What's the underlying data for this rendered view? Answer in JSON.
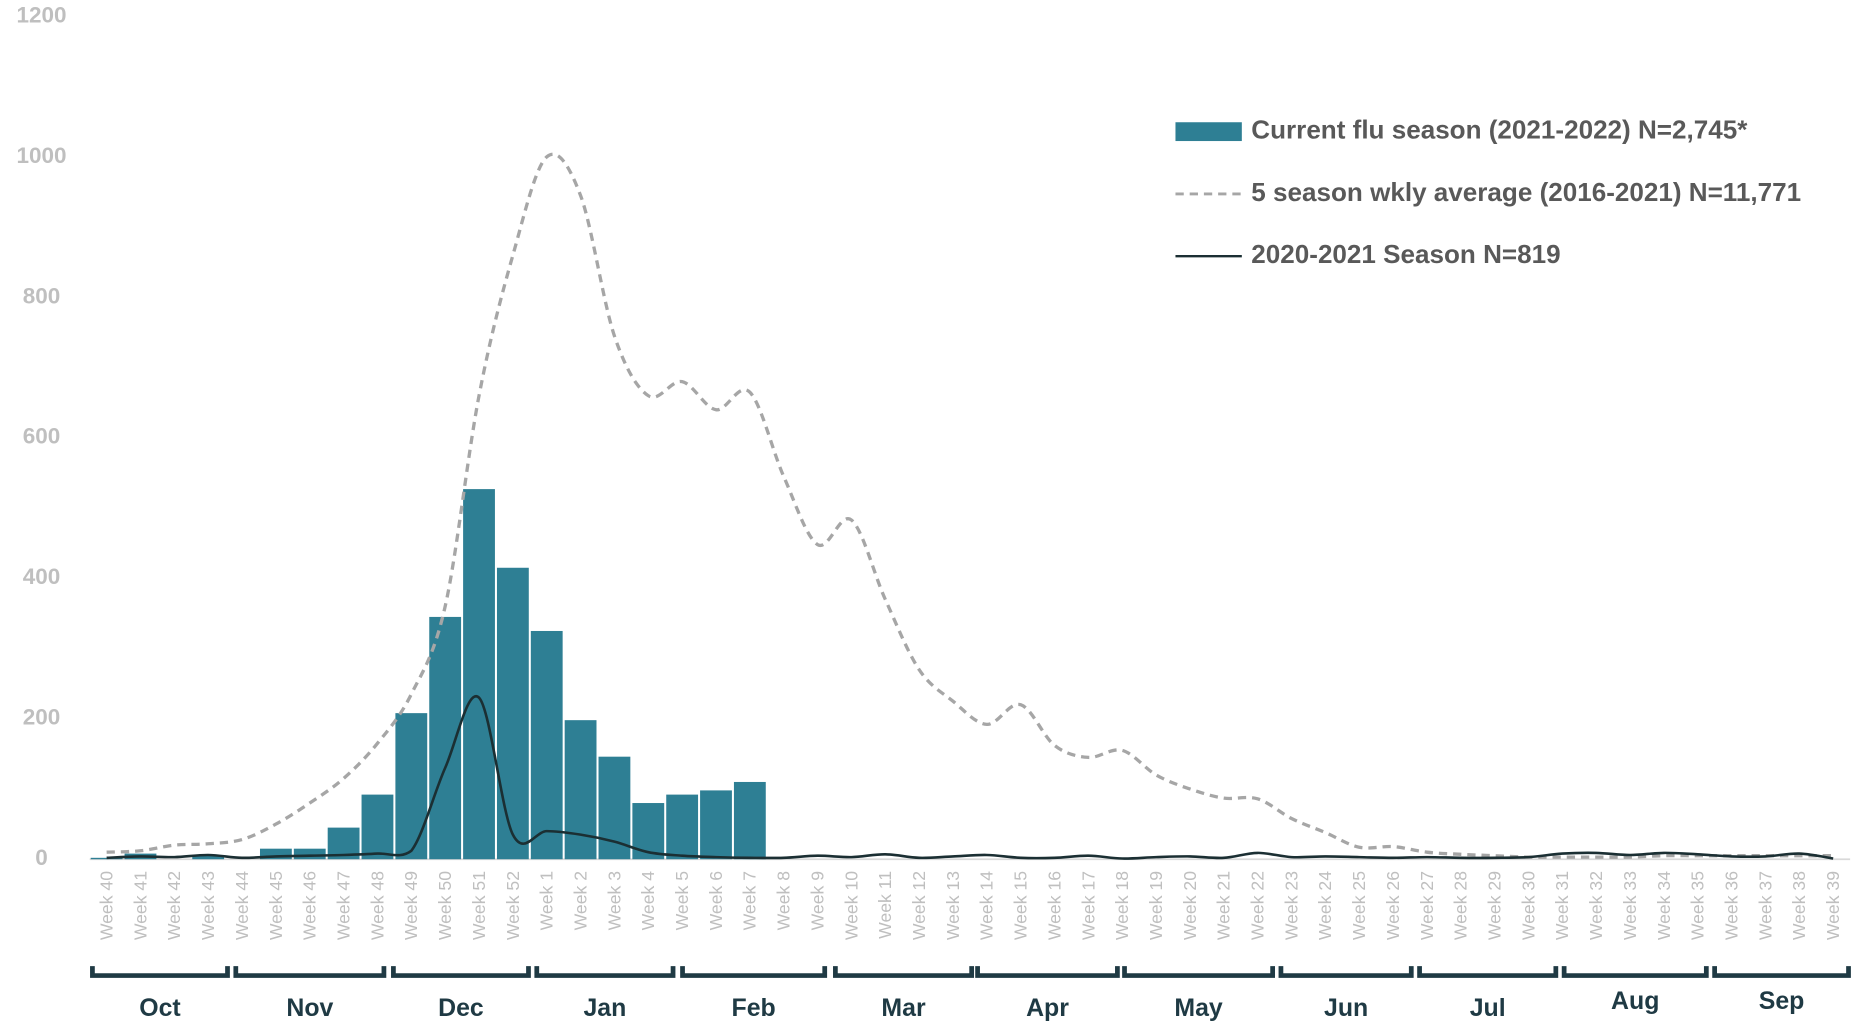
{
  "chart_data": {
    "type": "bar_line",
    "categories": [
      "Week 40",
      "Week 41",
      "Week 42",
      "Week 43",
      "Week 44",
      "Week 45",
      "Week 46",
      "Week 47",
      "Week 48",
      "Week 49",
      "Week 50",
      "Week 51",
      "Week 52",
      "Week 1",
      "Week 2",
      "Week 3",
      "Week 4",
      "Week 5",
      "Week 6",
      "Week 7",
      "Week 8",
      "Week 9",
      "Week 10",
      "Week 11",
      "Week 12",
      "Week 13",
      "Week 14",
      "Week 15",
      "Week 16",
      "Week 17",
      "Week 18",
      "Week 19",
      "Week 20",
      "Week 21",
      "Week 22",
      "Week 23",
      "Week 24",
      "Week 25",
      "Week 26",
      "Week 27",
      "Week 28",
      "Week 29",
      "Week 30",
      "Week 31",
      "Week 32",
      "Week 33",
      "Week 34",
      "Week 35",
      "Week 36",
      "Week 37",
      "Week 38",
      "Week 39"
    ],
    "months": [
      "Oct",
      "Nov",
      "Dec",
      "Jan",
      "Feb",
      "Mar",
      "Apr",
      "May",
      "Jun",
      "Jul",
      "Aug",
      "Sep"
    ],
    "series": [
      {
        "name": "Current flu season (2021-2022) N=2,745*",
        "kind": "bar",
        "color": "#2e7f94",
        "values": [
          2,
          8,
          0,
          5,
          0,
          15,
          15,
          45,
          92,
          208,
          345,
          527,
          415,
          325,
          198,
          146,
          80,
          92,
          98,
          110,
          null,
          null,
          null,
          null,
          null,
          null,
          null,
          null,
          null,
          null,
          null,
          null,
          null,
          null,
          null,
          null,
          null,
          null,
          null,
          null,
          null,
          null,
          null,
          null,
          null,
          null,
          null,
          null,
          null,
          null,
          null,
          null
        ]
      },
      {
        "name": "5 season wkly average (2016-2021) N=11,771",
        "kind": "dashed",
        "color": "#a6a6a6",
        "values": [
          10,
          12,
          20,
          22,
          28,
          50,
          80,
          115,
          165,
          235,
          360,
          660,
          860,
          1000,
          945,
          745,
          660,
          680,
          640,
          665,
          545,
          448,
          483,
          370,
          270,
          225,
          192,
          220,
          162,
          145,
          155,
          120,
          100,
          87,
          86,
          58,
          38,
          17,
          18,
          10,
          7,
          5,
          3,
          3,
          3,
          3,
          5,
          5,
          5,
          5,
          5,
          5
        ]
      },
      {
        "name": "2020-2021 Season N=819",
        "kind": "line",
        "color": "#1b2f33",
        "values": [
          2,
          4,
          3,
          6,
          2,
          4,
          5,
          6,
          8,
          12,
          130,
          230,
          35,
          40,
          35,
          25,
          10,
          5,
          3,
          2,
          2,
          5,
          3,
          7,
          2,
          4,
          6,
          2,
          2,
          5,
          1,
          3,
          4,
          2,
          9,
          3,
          4,
          3,
          2,
          3,
          2,
          2,
          3,
          8,
          9,
          6,
          9,
          7,
          4,
          4,
          8,
          1
        ]
      }
    ],
    "ylim": [
      0,
      1200
    ],
    "yticks": [
      0,
      200,
      400,
      600,
      800,
      1000,
      1200
    ]
  }
}
